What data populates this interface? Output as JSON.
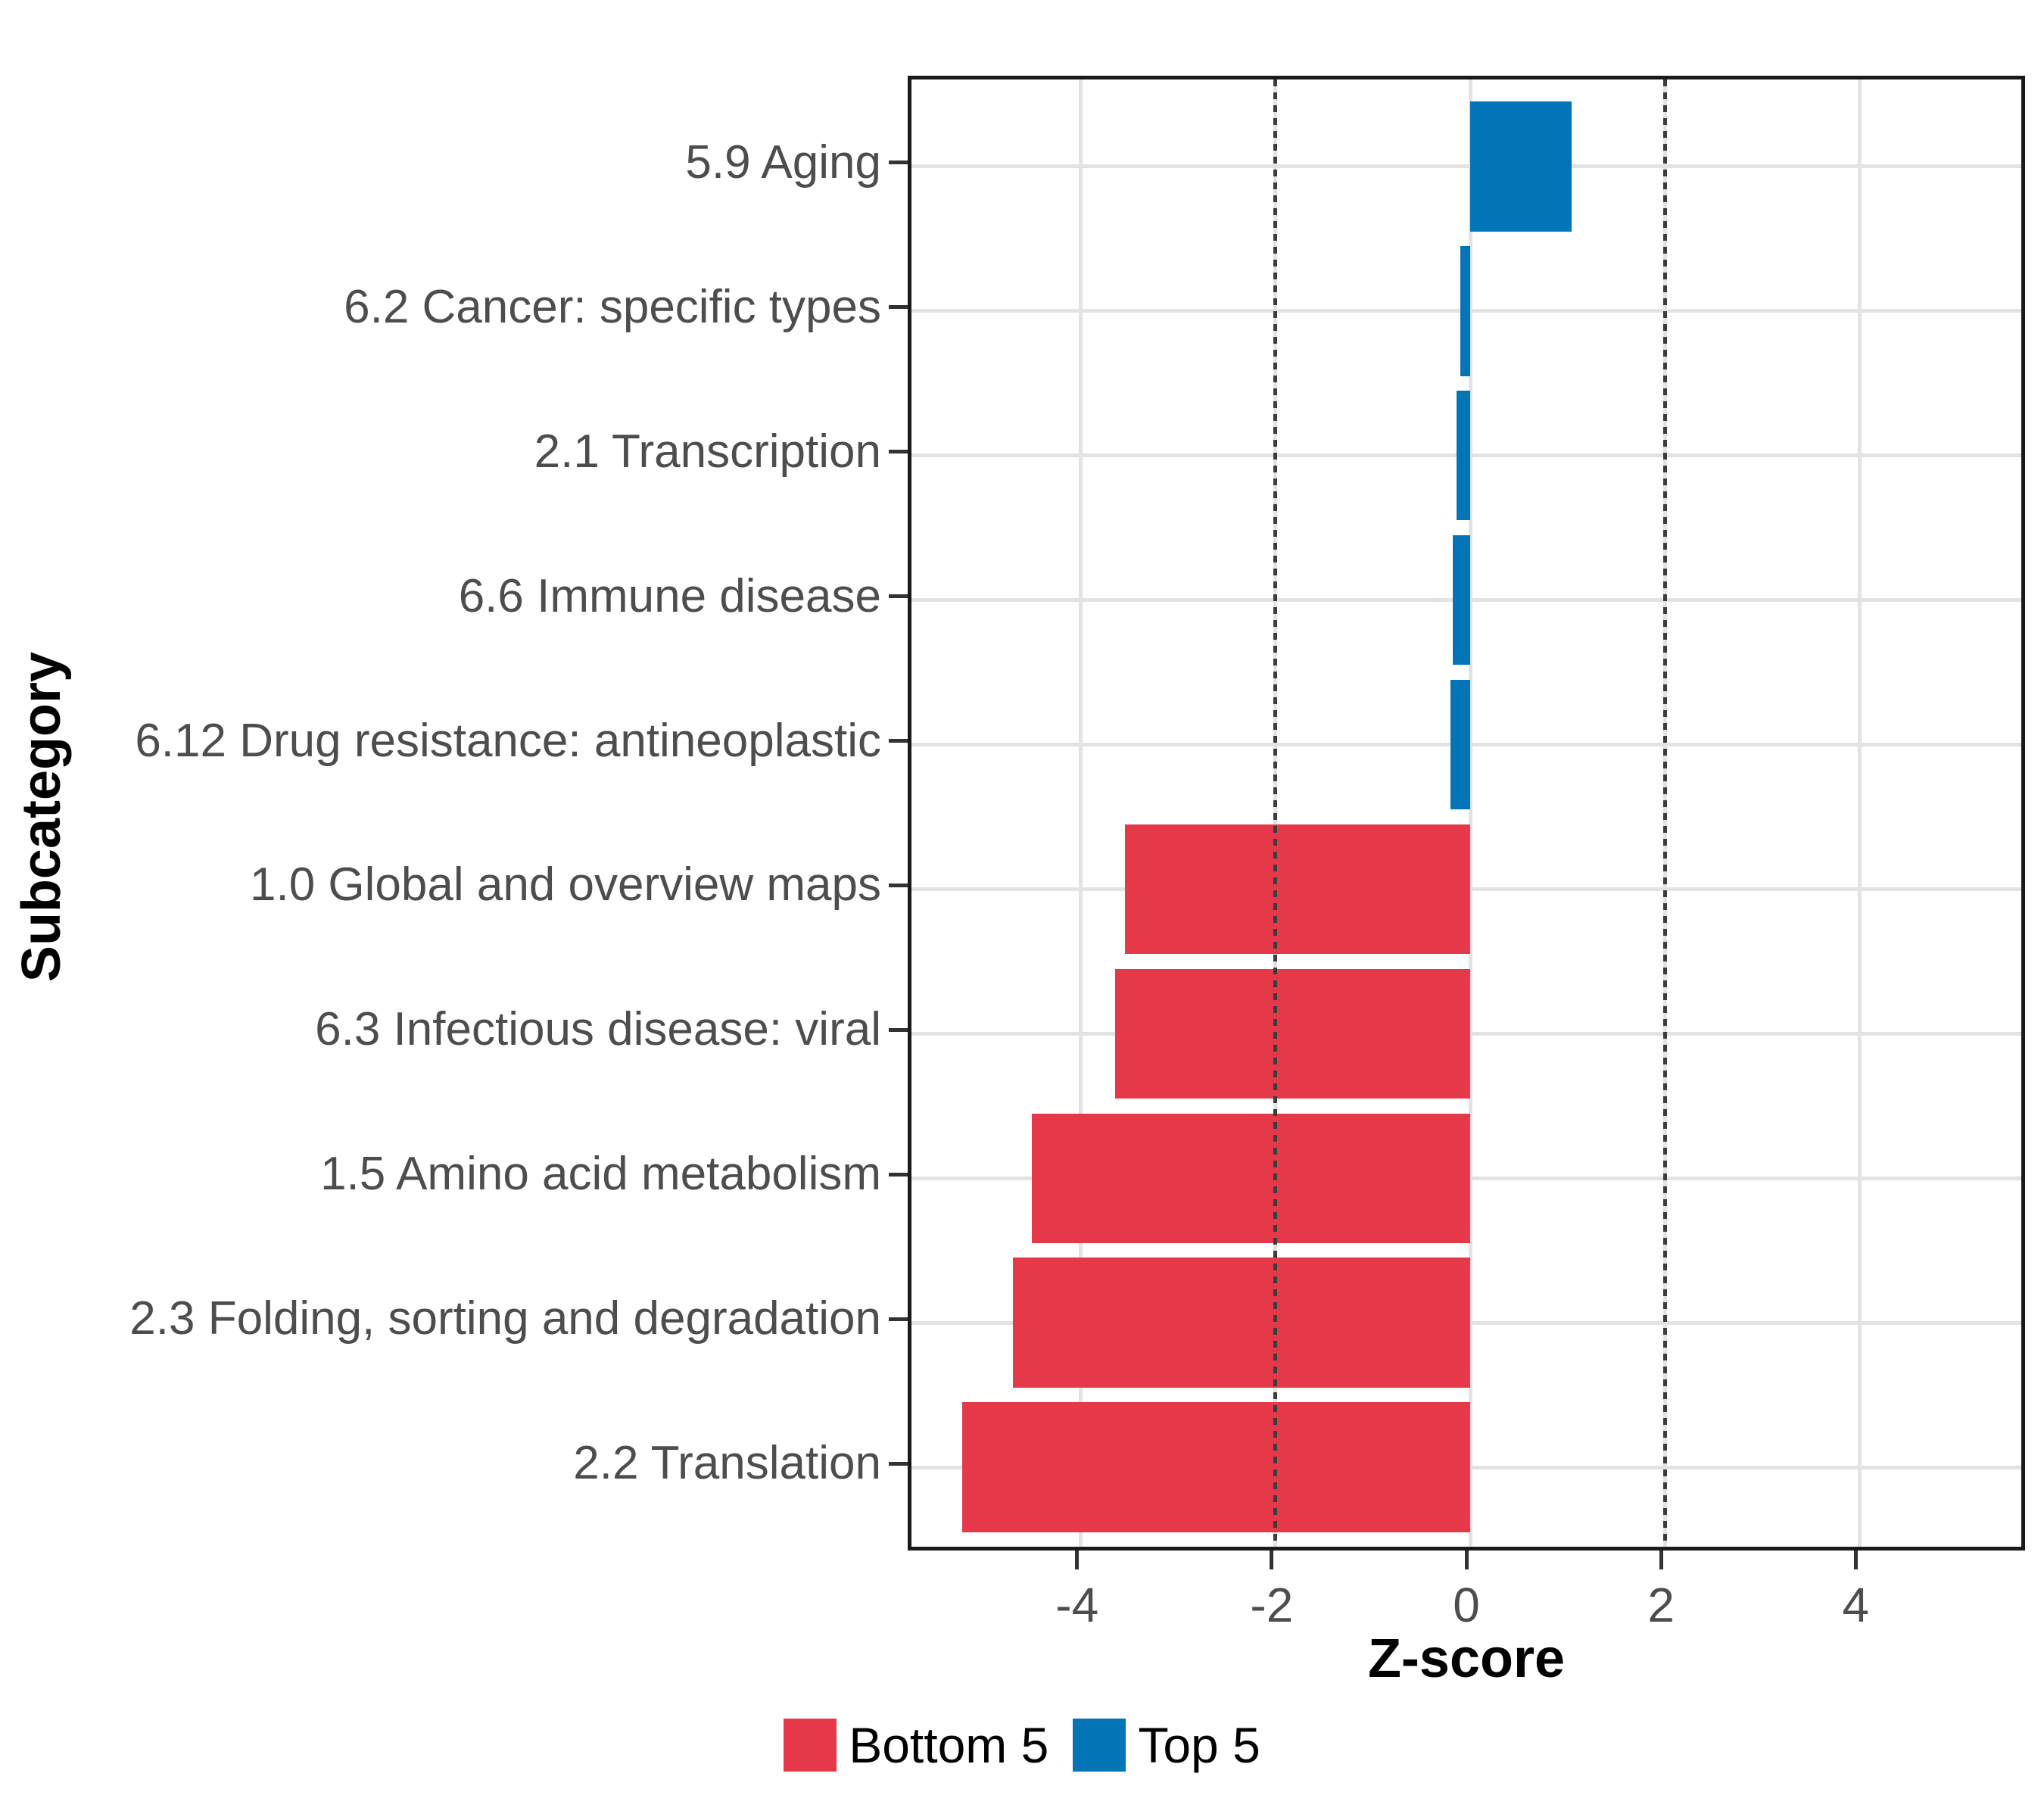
{
  "chart_data": {
    "type": "bar",
    "orientation": "horizontal",
    "xlabel": "Z-score",
    "ylabel": "Subcategory",
    "xlim": [
      -5.74,
      5.74
    ],
    "xticks": [
      -4,
      -2,
      0,
      2,
      4
    ],
    "xtick_labels": [
      "-4",
      "-2",
      "0",
      "2",
      "4"
    ],
    "grid": "major-only",
    "guide_lines": [
      {
        "x": -2,
        "style": "dotted"
      },
      {
        "x": 2,
        "style": "dotted"
      }
    ],
    "categories": [
      "5.9 Aging",
      "6.2 Cancer: specific types",
      "2.1 Transcription",
      "6.6 Immune disease",
      "6.12 Drug resistance: antineoplastic",
      "1.0 Global and overview maps",
      "6.3 Infectious disease: viral",
      "1.5 Amino acid metabolism",
      "2.3 Folding, sorting and degradation",
      "2.2 Translation"
    ],
    "values": [
      1.04,
      -0.1,
      -0.14,
      -0.18,
      -0.2,
      -3.55,
      -3.65,
      -4.5,
      -4.7,
      -5.22
    ],
    "groups": [
      "Top 5",
      "Top 5",
      "Top 5",
      "Top 5",
      "Top 5",
      "Bottom 5",
      "Bottom 5",
      "Bottom 5",
      "Bottom 5",
      "Bottom 5"
    ],
    "legend": {
      "position": "bottom",
      "entries": [
        {
          "label": "Bottom 5",
          "color": "#E5394A"
        },
        {
          "label": "Top 5",
          "color": "#0374B5"
        }
      ]
    }
  }
}
